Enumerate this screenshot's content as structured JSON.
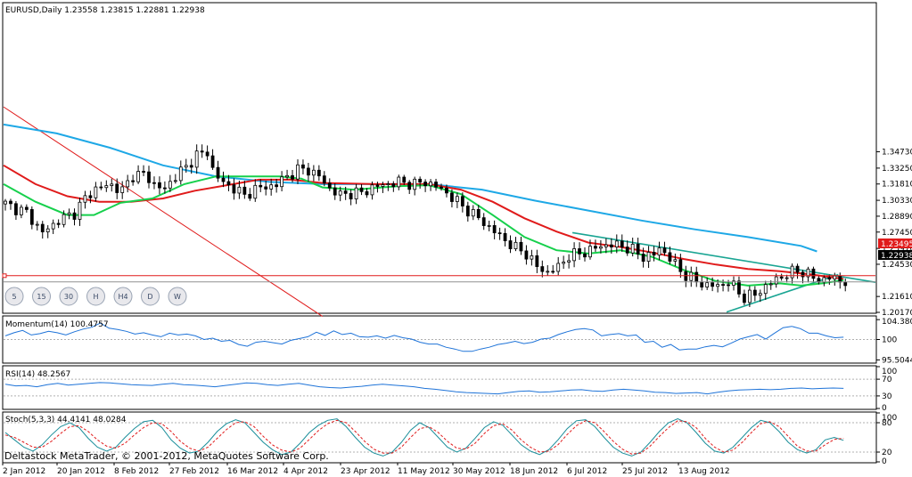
{
  "chart_data": [
    {
      "type": "candlestick",
      "title": "EURUSD,Daily  1.23558 1.23815 1.22881 1.22938",
      "ylim": [
        1.2017,
        1.4817
      ],
      "y_ticks": [
        "1.34730",
        "1.33250",
        "1.31810",
        "1.30330",
        "1.28890",
        "1.27450",
        "1.25970",
        "1.24530",
        "1.21610",
        "1.20170"
      ],
      "x_ticks": [
        "2 Jan 2012",
        "20 Jan 2012",
        "8 Feb 2012",
        "27 Feb 2012",
        "16 Mar 2012",
        "4 Apr 2012",
        "23 Apr 2012",
        "11 May 2012",
        "30 May 2012",
        "18 Jun 2012",
        "6 Jul 2012",
        "25 Jul 2012",
        "13 Aug 2012"
      ],
      "bid_label": "1.23495",
      "bid_value": 1.23495,
      "last_label": "1.22938",
      "last_value": 1.22938,
      "timeframes": [
        "5",
        "15",
        "30",
        "H",
        "H4",
        "D",
        "W"
      ],
      "close_path": [
        [
          0,
          1.3
        ],
        [
          4,
          1.292
        ],
        [
          7,
          1.274
        ],
        [
          10,
          1.285
        ],
        [
          13,
          1.292
        ],
        [
          15,
          1.305
        ],
        [
          17,
          1.314
        ],
        [
          20,
          1.317
        ],
        [
          22,
          1.312
        ],
        [
          24,
          1.326
        ],
        [
          26,
          1.327
        ],
        [
          28,
          1.318
        ],
        [
          30,
          1.313
        ],
        [
          32,
          1.326
        ],
        [
          34,
          1.333
        ],
        [
          36,
          1.345
        ],
        [
          38,
          1.346
        ],
        [
          39,
          1.332
        ],
        [
          41,
          1.318
        ],
        [
          43,
          1.315
        ],
        [
          45,
          1.307
        ],
        [
          47,
          1.314
        ],
        [
          49,
          1.315
        ],
        [
          51,
          1.318
        ],
        [
          53,
          1.325
        ],
        [
          55,
          1.331
        ],
        [
          57,
          1.331
        ],
        [
          59,
          1.325
        ],
        [
          61,
          1.314
        ],
        [
          63,
          1.308
        ],
        [
          65,
          1.31
        ],
        [
          67,
          1.31
        ],
        [
          69,
          1.315
        ],
        [
          71,
          1.317
        ],
        [
          74,
          1.32
        ],
        [
          77,
          1.318
        ],
        [
          79,
          1.32
        ],
        [
          81,
          1.316
        ],
        [
          83,
          1.31
        ],
        [
          86,
          1.298
        ],
        [
          89,
          1.287
        ],
        [
          92,
          1.275
        ],
        [
          94,
          1.267
        ],
        [
          96,
          1.26
        ],
        [
          98,
          1.255
        ],
        [
          100,
          1.243
        ],
        [
          102,
          1.238
        ],
        [
          104,
          1.243
        ],
        [
          106,
          1.253
        ],
        [
          108,
          1.255
        ],
        [
          110,
          1.258
        ],
        [
          112,
          1.262
        ],
        [
          114,
          1.263
        ],
        [
          116,
          1.262
        ],
        [
          118,
          1.258
        ],
        [
          120,
          1.252
        ],
        [
          122,
          1.254
        ],
        [
          123,
          1.26
        ],
        [
          124,
          1.256
        ],
        [
          126,
          1.245
        ],
        [
          128,
          1.235
        ],
        [
          130,
          1.23
        ],
        [
          132,
          1.226
        ],
        [
          134,
          1.226
        ],
        [
          136,
          1.229
        ],
        [
          137,
          1.225
        ],
        [
          139,
          1.215
        ],
        [
          141,
          1.218
        ],
        [
          143,
          1.225
        ],
        [
          145,
          1.232
        ],
        [
          147,
          1.236
        ],
        [
          149,
          1.24
        ],
        [
          151,
          1.236
        ],
        [
          153,
          1.231
        ],
        [
          155,
          1.233
        ],
        [
          157,
          1.231
        ],
        [
          158,
          1.229
        ]
      ],
      "series": [
        {
          "name": "",
          "color": "#1ea8e6",
          "values": [
            [
              0,
              1.372
            ],
            [
              10,
              1.364
            ],
            [
              20,
              1.351
            ],
            [
              30,
              1.335
            ],
            [
              40,
              1.325
            ],
            [
              50,
              1.32
            ],
            [
              60,
              1.318
            ],
            [
              70,
              1.318
            ],
            [
              80,
              1.318
            ],
            [
              90,
              1.313
            ],
            [
              100,
              1.303
            ],
            [
              110,
              1.294
            ],
            [
              120,
              1.285
            ],
            [
              130,
              1.277
            ],
            [
              140,
              1.27
            ],
            [
              150,
              1.262
            ],
            [
              153,
              1.257
            ]
          ]
        },
        {
          "name": "",
          "color": "#e01b1b",
          "values": [
            [
              0,
              1.335
            ],
            [
              6,
              1.318
            ],
            [
              12,
              1.307
            ],
            [
              18,
              1.302
            ],
            [
              24,
              1.302
            ],
            [
              30,
              1.305
            ],
            [
              36,
              1.312
            ],
            [
              42,
              1.317
            ],
            [
              48,
              1.322
            ],
            [
              54,
              1.322
            ],
            [
              60,
              1.319
            ],
            [
              70,
              1.318
            ],
            [
              80,
              1.318
            ],
            [
              86,
              1.313
            ],
            [
              92,
              1.302
            ],
            [
              98,
              1.287
            ],
            [
              104,
              1.275
            ],
            [
              110,
              1.265
            ],
            [
              116,
              1.261
            ],
            [
              122,
              1.256
            ],
            [
              128,
              1.25
            ],
            [
              134,
              1.245
            ],
            [
              140,
              1.241
            ],
            [
              146,
              1.239
            ],
            [
              152,
              1.236
            ],
            [
              158,
              1.232
            ]
          ]
        },
        {
          "name": "",
          "color": "#16d04c",
          "values": [
            [
              0,
              1.318
            ],
            [
              6,
              1.302
            ],
            [
              12,
              1.29
            ],
            [
              17,
              1.29
            ],
            [
              22,
              1.301
            ],
            [
              28,
              1.305
            ],
            [
              34,
              1.318
            ],
            [
              40,
              1.325
            ],
            [
              46,
              1.325
            ],
            [
              52,
              1.325
            ],
            [
              56,
              1.323
            ],
            [
              60,
              1.315
            ],
            [
              66,
              1.313
            ],
            [
              74,
              1.316
            ],
            [
              80,
              1.317
            ],
            [
              86,
              1.309
            ],
            [
              92,
              1.29
            ],
            [
              98,
              1.27
            ],
            [
              104,
              1.258
            ],
            [
              110,
              1.255
            ],
            [
              116,
              1.258
            ],
            [
              122,
              1.252
            ],
            [
              128,
              1.24
            ],
            [
              134,
              1.23
            ],
            [
              140,
              1.226
            ],
            [
              146,
              1.228
            ],
            [
              150,
              1.226
            ],
            [
              154,
              1.228
            ],
            [
              158,
              1.231
            ]
          ]
        }
      ],
      "trendlines": [
        {
          "color": "#e01b1b",
          "points": [
            [
              0,
              1.388
            ],
            [
              60,
              1.198
            ]
          ]
        },
        {
          "color": "#1aa593",
          "points": [
            [
              107,
              1.274
            ],
            [
              164,
              1.229
            ]
          ]
        },
        {
          "color": "#1aa593",
          "points": [
            [
              136,
              1.202
            ],
            [
              157,
              1.236
            ]
          ]
        }
      ]
    },
    {
      "type": "line",
      "title": "Momentum(14) 100.4757",
      "ylim": [
        95.0,
        105.0
      ],
      "y_ticks": [
        "104.380",
        "100",
        "95.5044"
      ],
      "reference_lines": [
        100
      ],
      "series": [
        {
          "name": "Momentum(14)",
          "color": "#1e73d8",
          "values": [
            100.8,
            101.5,
            102.0,
            101.0,
            101.3,
            101.8,
            101.5,
            101.0,
            101.7,
            102.3,
            102.7,
            103.6,
            102.5,
            102.2,
            101.8,
            101.2,
            101.5,
            101.0,
            100.6,
            101.4,
            101.0,
            101.2,
            100.8,
            100.0,
            100.3,
            99.6,
            99.8,
            98.9,
            98.5,
            99.4,
            99.6,
            99.3,
            99.0,
            99.8,
            100.2,
            100.6,
            101.6,
            100.9,
            101.9,
            101.1,
            101.4,
            100.6,
            100.5,
            100.8,
            100.3,
            100.9,
            100.4,
            100.1,
            99.4,
            99.0,
            99.0,
            98.3,
            97.9,
            97.4,
            97.4,
            97.9,
            98.3,
            98.9,
            99.2,
            99.6,
            99.1,
            99.4,
            100.1,
            100.3,
            101.1,
            101.7,
            102.2,
            102.4,
            102.1,
            100.8,
            101.1,
            101.3,
            100.8,
            101.0,
            99.4,
            99.6,
            98.3,
            98.9,
            97.7,
            97.9,
            97.9,
            98.4,
            98.7,
            98.4,
            99.2,
            100.1,
            100.6,
            101.1,
            100.1,
            101.4,
            102.6,
            102.9,
            102.4,
            101.4,
            101.4,
            100.8,
            100.4,
            100.5
          ]
        }
      ]
    },
    {
      "type": "line",
      "title": "RSI(14) 48.2567",
      "ylim": [
        0,
        100
      ],
      "y_ticks": [
        "100",
        "70",
        "30",
        "0"
      ],
      "reference_lines": [
        70,
        30
      ],
      "series": [
        {
          "name": "RSI(14)",
          "color": "#1e73d8",
          "values": [
            58,
            54,
            55,
            52,
            57,
            60,
            56,
            58,
            60,
            62,
            61,
            59,
            57,
            56,
            55,
            58,
            60,
            57,
            56,
            54,
            52,
            55,
            58,
            61,
            60,
            57,
            55,
            58,
            60,
            56,
            52,
            50,
            49,
            51,
            53,
            56,
            58,
            56,
            54,
            52,
            48,
            46,
            43,
            40,
            38,
            37,
            36,
            35,
            38,
            41,
            42,
            39,
            40,
            42,
            44,
            45,
            42,
            41,
            44,
            46,
            44,
            42,
            39,
            38,
            36,
            37,
            38,
            35,
            39,
            42,
            44,
            45,
            46,
            45,
            46,
            48,
            49,
            47,
            48,
            49,
            48
          ]
        }
      ]
    },
    {
      "type": "line",
      "title": "Stoch(5,3,3) 44.4141 48.0284",
      "ylim": [
        0,
        100
      ],
      "y_ticks": [
        "100",
        "80",
        "20",
        "0"
      ],
      "reference_lines": [
        80,
        20
      ],
      "series": [
        {
          "name": "",
          "color": "#1a8e9a",
          "values": [
            60,
            45,
            30,
            22,
            35,
            55,
            72,
            80,
            70,
            48,
            30,
            22,
            30,
            50,
            68,
            82,
            85,
            70,
            45,
            28,
            18,
            22,
            40,
            62,
            78,
            86,
            80,
            60,
            40,
            25,
            15,
            20,
            38,
            60,
            75,
            85,
            88,
            72,
            50,
            30,
            18,
            12,
            20,
            40,
            65,
            80,
            70,
            50,
            30,
            20,
            28,
            48,
            70,
            82,
            75,
            55,
            35,
            22,
            15,
            25,
            45,
            68,
            84,
            86,
            72,
            50,
            30,
            18,
            12,
            20,
            40,
            62,
            80,
            88,
            80,
            60,
            38,
            22,
            18,
            30,
            50,
            70,
            85,
            80,
            62,
            40,
            25,
            18,
            25,
            45,
            50,
            44
          ]
        },
        {
          "name": "",
          "color": "#e01b1b",
          "values": [
            55,
            50,
            40,
            30,
            30,
            42,
            58,
            72,
            74,
            62,
            45,
            32,
            28,
            38,
            55,
            70,
            80,
            78,
            62,
            42,
            28,
            22,
            30,
            48,
            66,
            80,
            82,
            72,
            52,
            35,
            24,
            20,
            28,
            46,
            64,
            78,
            85,
            80,
            62,
            42,
            26,
            18,
            18,
            30,
            50,
            68,
            72,
            60,
            42,
            28,
            26,
            38,
            58,
            74,
            78,
            65,
            45,
            30,
            20,
            22,
            35,
            56,
            74,
            84,
            80,
            62,
            42,
            26,
            16,
            18,
            32,
            52,
            70,
            84,
            82,
            70,
            48,
            30,
            20,
            24,
            40,
            60,
            78,
            82,
            72,
            52,
            32,
            22,
            22,
            35,
            46,
            48
          ]
        }
      ]
    }
  ],
  "copyright": "Deltastock MetaTrader, © 2001-2012, MetaQuotes Software Corp."
}
